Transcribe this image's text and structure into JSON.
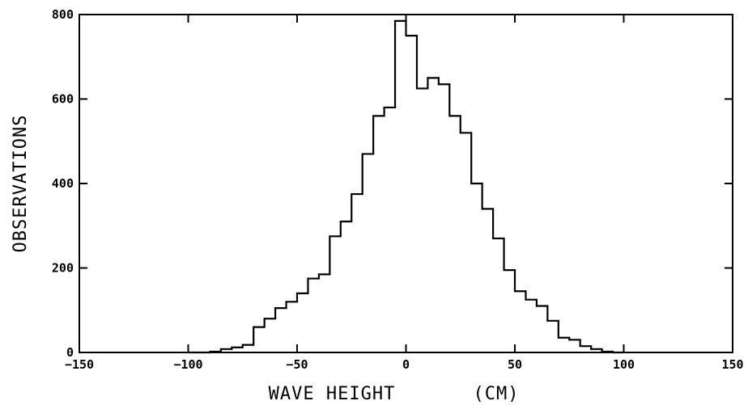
{
  "chart_data": {
    "type": "bar",
    "title": "",
    "xlabel": "WAVE HEIGHT",
    "xunit": "(CM)",
    "ylabel": "OBSERVATIONS",
    "xlim": [
      -150,
      150
    ],
    "ylim": [
      0,
      800
    ],
    "xticks": [
      -150,
      -100,
      -50,
      0,
      50,
      100,
      150
    ],
    "yticks": [
      0,
      200,
      400,
      600,
      800
    ],
    "grid": false,
    "legend": "none",
    "style": "step histogram",
    "bin_width": 5,
    "bins": [
      {
        "x0": -100,
        "x1": -95,
        "value": 0
      },
      {
        "x0": -95,
        "x1": -90,
        "value": 0
      },
      {
        "x0": -90,
        "x1": -85,
        "value": 2
      },
      {
        "x0": -85,
        "x1": -80,
        "value": 8
      },
      {
        "x0": -80,
        "x1": -75,
        "value": 12
      },
      {
        "x0": -75,
        "x1": -70,
        "value": 18
      },
      {
        "x0": -70,
        "x1": -65,
        "value": 60
      },
      {
        "x0": -65,
        "x1": -60,
        "value": 80
      },
      {
        "x0": -60,
        "x1": -55,
        "value": 105
      },
      {
        "x0": -55,
        "x1": -50,
        "value": 120
      },
      {
        "x0": -50,
        "x1": -45,
        "value": 140
      },
      {
        "x0": -45,
        "x1": -40,
        "value": 175
      },
      {
        "x0": -40,
        "x1": -35,
        "value": 185
      },
      {
        "x0": -35,
        "x1": -30,
        "value": 275
      },
      {
        "x0": -30,
        "x1": -25,
        "value": 310
      },
      {
        "x0": -25,
        "x1": -20,
        "value": 375
      },
      {
        "x0": -20,
        "x1": -15,
        "value": 470
      },
      {
        "x0": -15,
        "x1": -10,
        "value": 560
      },
      {
        "x0": -10,
        "x1": -5,
        "value": 580
      },
      {
        "x0": -5,
        "x1": 0,
        "value": 785
      },
      {
        "x0": 0,
        "x1": 5,
        "value": 750
      },
      {
        "x0": 5,
        "x1": 10,
        "value": 625
      },
      {
        "x0": 10,
        "x1": 15,
        "value": 650
      },
      {
        "x0": 15,
        "x1": 20,
        "value": 635
      },
      {
        "x0": 20,
        "x1": 25,
        "value": 560
      },
      {
        "x0": 25,
        "x1": 30,
        "value": 520
      },
      {
        "x0": 30,
        "x1": 35,
        "value": 400
      },
      {
        "x0": 35,
        "x1": 40,
        "value": 340
      },
      {
        "x0": 40,
        "x1": 45,
        "value": 270
      },
      {
        "x0": 45,
        "x1": 50,
        "value": 195
      },
      {
        "x0": 50,
        "x1": 55,
        "value": 145
      },
      {
        "x0": 55,
        "x1": 60,
        "value": 125
      },
      {
        "x0": 60,
        "x1": 65,
        "value": 110
      },
      {
        "x0": 65,
        "x1": 70,
        "value": 75
      },
      {
        "x0": 70,
        "x1": 75,
        "value": 35
      },
      {
        "x0": 75,
        "x1": 80,
        "value": 30
      },
      {
        "x0": 80,
        "x1": 85,
        "value": 15
      },
      {
        "x0": 85,
        "x1": 90,
        "value": 8
      },
      {
        "x0": 90,
        "x1": 95,
        "value": 2
      },
      {
        "x0": 95,
        "x1": 100,
        "value": 0
      }
    ],
    "colors": {
      "line": "#000000",
      "background": "#ffffff"
    }
  }
}
